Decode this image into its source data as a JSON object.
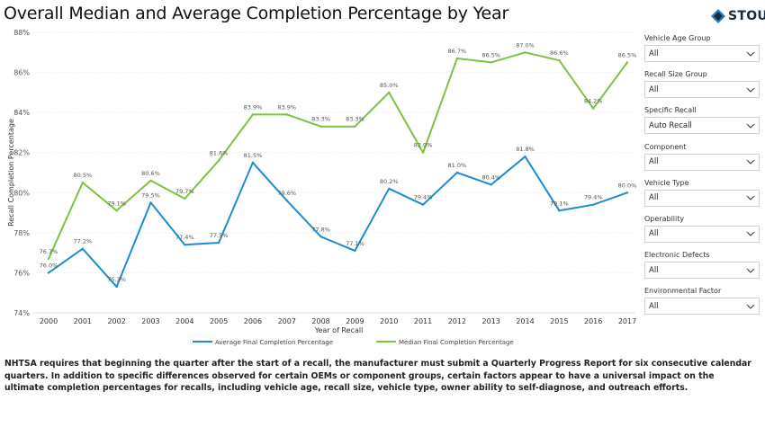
{
  "header": {
    "title": "Overall Median and Average Completion Percentage by Year",
    "logo_text": "STOUT",
    "logo_icon": "stout-diamond-logo-icon"
  },
  "filters": [
    {
      "label": "Vehicle Age Group",
      "value": "All"
    },
    {
      "label": "Recall Size Group",
      "value": "All"
    },
    {
      "label": "Specific Recall",
      "value": "Auto Recall"
    },
    {
      "label": "Component",
      "value": "All"
    },
    {
      "label": "Vehicle Type",
      "value": "All"
    },
    {
      "label": "Operability",
      "value": "All"
    },
    {
      "label": "Electronic Defects",
      "value": "All"
    },
    {
      "label": "Environmental Factor",
      "value": "All"
    }
  ],
  "footnote": "NHTSA requires that beginning the quarter after the start of a recall, the manufacturer must submit a Quarterly Progress Report for six consecutive calendar quarters. In addition to specific differences observed for certain OEMs or component groups, certain factors appear to have a universal impact on the ultimate completion percentages for recalls, including vehicle age, recall size, vehicle type, owner ability to self-diagnose, and outreach efforts.",
  "chart_data": {
    "type": "line",
    "x": [
      "2000",
      "2001",
      "2002",
      "2003",
      "2004",
      "2005",
      "2006",
      "2007",
      "2008",
      "2009",
      "2010",
      "2011",
      "2012",
      "2013",
      "2014",
      "2015",
      "2016",
      "2017"
    ],
    "xlabel": "Year of Recall",
    "ylabel": "Recall Completion Percentage",
    "ylim": [
      74,
      88
    ],
    "yticks": [
      74,
      76,
      78,
      80,
      82,
      84,
      86,
      88
    ],
    "ytick_suffix": "%",
    "grid": true,
    "legend_position": "bottom",
    "series": [
      {
        "name": "Average Final Completion Percentage",
        "color": "#1f8ccf",
        "values": [
          76.0,
          77.2,
          75.3,
          79.5,
          77.4,
          77.5,
          81.5,
          79.6,
          77.8,
          77.1,
          80.2,
          79.4,
          81.0,
          80.4,
          81.8,
          79.1,
          79.4,
          80.0
        ],
        "labels": [
          "76.0%",
          "77.2%",
          "75.3%",
          "79.5%",
          "77.4%",
          "77.5%",
          "81.5%",
          "79.6%",
          "77.8%",
          "77.1%",
          "80.2%",
          "79.4%",
          "81.0%",
          "80.4%",
          "81.8%",
          "79.1%",
          "79.4%",
          "80.0%"
        ]
      },
      {
        "name": "Median Final Completion Percentage",
        "color": "#7dc242",
        "values": [
          76.7,
          80.5,
          79.1,
          80.6,
          79.7,
          81.6,
          83.9,
          83.9,
          83.3,
          83.3,
          85.0,
          82.0,
          86.7,
          86.5,
          87.0,
          86.6,
          84.2,
          86.5
        ],
        "labels": [
          "76.7%",
          "80.5%",
          "79.1%",
          "80.6%",
          "79.7%",
          "81.6%",
          "83.9%",
          "83.9%",
          "83.3%",
          "83.3%",
          "85.0%",
          "82.0%",
          "86.7%",
          "86.5%",
          "87.0%",
          "86.6%",
          "84.2%",
          "86.5%"
        ]
      }
    ]
  }
}
